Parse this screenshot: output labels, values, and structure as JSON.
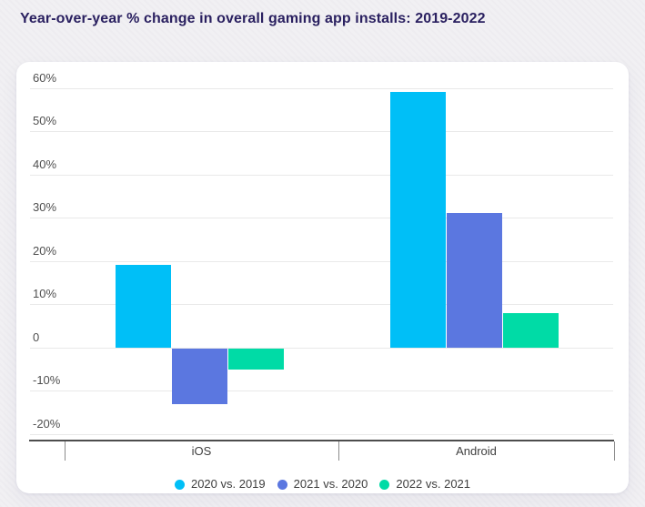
{
  "title": "Year-over-year % change in overall gaming app installs: 2019-2022",
  "colors": {
    "title": "#2a2060",
    "series_cyan": "#00bff7",
    "series_purple": "#5b77e0",
    "series_green": "#00dba6",
    "axis_line": "#4d4d4d",
    "gridline": "#e9e9e9"
  },
  "chart_data": {
    "type": "bar",
    "title": "Year-over-year % change in overall gaming app installs: 2019-2022",
    "categories": [
      "iOS",
      "Android"
    ],
    "series": [
      {
        "name": "2020 vs. 2019",
        "color": "#00bff7",
        "values": [
          19,
          59
        ]
      },
      {
        "name": "2021 vs. 2020",
        "color": "#5b77e0",
        "values": [
          -13,
          31
        ]
      },
      {
        "name": "2022 vs. 2021",
        "color": "#00dba6",
        "values": [
          -5,
          8
        ]
      }
    ],
    "xlabel": "",
    "ylabel": "",
    "ylim": [
      -20,
      60
    ],
    "y_ticks": [
      {
        "label": "60%",
        "value": 60
      },
      {
        "label": "50%",
        "value": 50
      },
      {
        "label": "40%",
        "value": 40
      },
      {
        "label": "30%",
        "value": 30
      },
      {
        "label": "20%",
        "value": 20
      },
      {
        "label": "10%",
        "value": 10
      },
      {
        "label": "0",
        "value": 0
      },
      {
        "label": "-10%",
        "value": -10
      },
      {
        "label": "-20%",
        "value": -20
      }
    ],
    "grid": true,
    "legend_position": "bottom"
  }
}
